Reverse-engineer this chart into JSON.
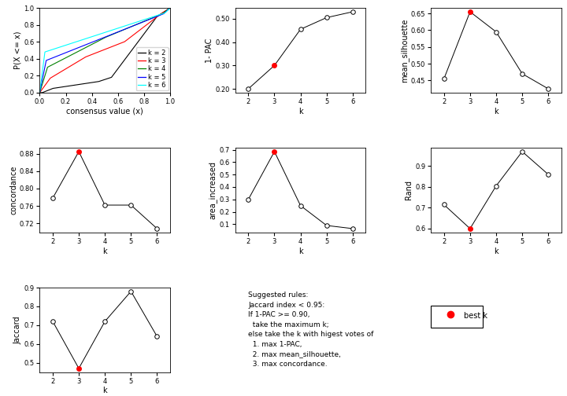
{
  "k_values": [
    2,
    3,
    4,
    5,
    6
  ],
  "best_k": 3,
  "pac_1minus": [
    0.2,
    0.3,
    0.455,
    0.505,
    0.53
  ],
  "mean_silhouette": [
    0.455,
    0.655,
    0.595,
    0.47,
    0.425
  ],
  "concordance": [
    0.778,
    0.885,
    0.762,
    0.762,
    0.708
  ],
  "area_increased": [
    0.3,
    0.685,
    0.25,
    0.09,
    0.065
  ],
  "rand": [
    0.715,
    0.6,
    0.805,
    0.97,
    0.86
  ],
  "jaccard": [
    0.72,
    0.47,
    0.72,
    0.88,
    0.64
  ],
  "cdf_colors": [
    "black",
    "red",
    "green",
    "blue",
    "cyan"
  ],
  "cdf_labels": [
    "k = 2",
    "k = 3",
    "k = 4",
    "k = 5",
    "k = 6"
  ],
  "label_fontsize": 7,
  "tick_fontsize": 6,
  "legend_fontsize": 6,
  "annotation_text": "Suggested rules:\nJaccard index < 0.95:\nIf 1-PAC >= 0.90,\n  take the maximum k;\nelse take the k with higest votes of\n  1. max 1-PAC,\n  2. max mean_silhouette,\n  3. max concordance.",
  "best_k_label": "best k"
}
